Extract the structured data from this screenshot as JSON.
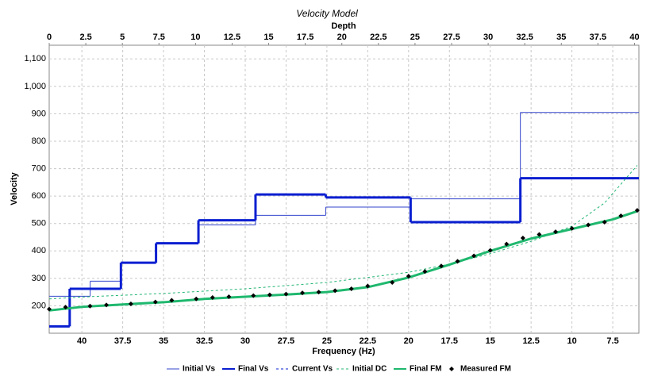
{
  "chart_data": {
    "type": "line",
    "title": "Velocity Model",
    "x_label_top": "Depth",
    "x_label": "Frequency (Hz)",
    "y_label": "Velocity",
    "xlim": [
      0,
      40.3
    ],
    "xticks": [
      0,
      2.5,
      5,
      7.5,
      10,
      12.5,
      15,
      17.5,
      20,
      22.5,
      25,
      27.5,
      30,
      32.5,
      35,
      37.5,
      40
    ],
    "x2lim": [
      42.0,
      5.9
    ],
    "x2ticks": [
      40,
      37.5,
      35,
      32.5,
      30,
      27.5,
      25,
      22.5,
      20,
      17.5,
      15,
      12.5,
      10,
      7.5
    ],
    "ylim": [
      100,
      1150
    ],
    "yticks": [
      200,
      300,
      400,
      500,
      600,
      700,
      800,
      900,
      {
        "value": 1000,
        "label": "1,000"
      },
      {
        "value": 1100,
        "label": "1,100"
      }
    ],
    "grid": true,
    "legend": "bottom",
    "series": [
      {
        "name": "Initial Vs",
        "color": "#3344cc",
        "style": "step",
        "axis": "x",
        "x": [
          0,
          2.8,
          4.9,
          7.3,
          10.2,
          14.1,
          18.9,
          24.7,
          32.2
        ],
        "values": [
          235,
          290,
          357,
          428,
          495,
          530,
          560,
          590,
          905
        ]
      },
      {
        "name": "Final Vs",
        "color": "#0a1fd0",
        "style": "step-thick",
        "axis": "x",
        "x": [
          0,
          1.4,
          4.9,
          7.3,
          10.2,
          14.1,
          18.9,
          24.7,
          32.2
        ],
        "values": [
          125,
          262,
          357,
          428,
          512,
          606,
          595,
          505,
          665
        ]
      },
      {
        "name": "Current Vs",
        "color": "#0a1fd0",
        "style": "step-dashed",
        "axis": "x",
        "x": [
          0,
          1.4,
          4.9,
          7.3,
          10.2,
          14.1,
          18.9,
          24.7,
          32.2
        ],
        "values": [
          125,
          262,
          357,
          428,
          512,
          606,
          595,
          505,
          665
        ]
      },
      {
        "name": "Initial DC",
        "color": "#22b573",
        "style": "dashed",
        "axis": "x2",
        "x": [
          42,
          40,
          35,
          30,
          25,
          20,
          17.5,
          15,
          12.5,
          10,
          8,
          6
        ],
        "values": [
          225,
          232,
          245,
          262,
          285,
          322,
          352,
          390,
          435,
          490,
          575,
          712
        ]
      },
      {
        "name": "Final FM",
        "color": "#1fb86e",
        "style": "thick",
        "axis": "x2",
        "x": [
          42,
          40,
          37.5,
          35,
          32.5,
          30,
          27.5,
          25,
          22.5,
          20,
          17.5,
          15,
          12.5,
          10,
          7.5,
          6
        ],
        "values": [
          183,
          196,
          205,
          213,
          225,
          233,
          241,
          250,
          268,
          303,
          350,
          400,
          445,
          480,
          515,
          545
        ]
      },
      {
        "name": "Measured FM",
        "color": "#000000",
        "style": "diamond",
        "axis": "x2",
        "x": [
          42,
          41,
          39.5,
          38.5,
          37,
          35.5,
          34.5,
          33,
          32,
          31,
          29.5,
          28.5,
          27.5,
          26.5,
          25.5,
          24.5,
          23.5,
          22.5,
          21,
          20,
          19,
          18,
          17,
          16,
          15,
          14,
          13,
          12,
          11,
          10,
          9,
          8,
          7,
          6
        ],
        "values": [
          188,
          195,
          199,
          203,
          207,
          214,
          220,
          225,
          230,
          233,
          237,
          240,
          243,
          247,
          250,
          255,
          262,
          272,
          285,
          308,
          325,
          345,
          362,
          382,
          402,
          425,
          447,
          460,
          470,
          482,
          495,
          505,
          528,
          548
        ]
      }
    ]
  }
}
